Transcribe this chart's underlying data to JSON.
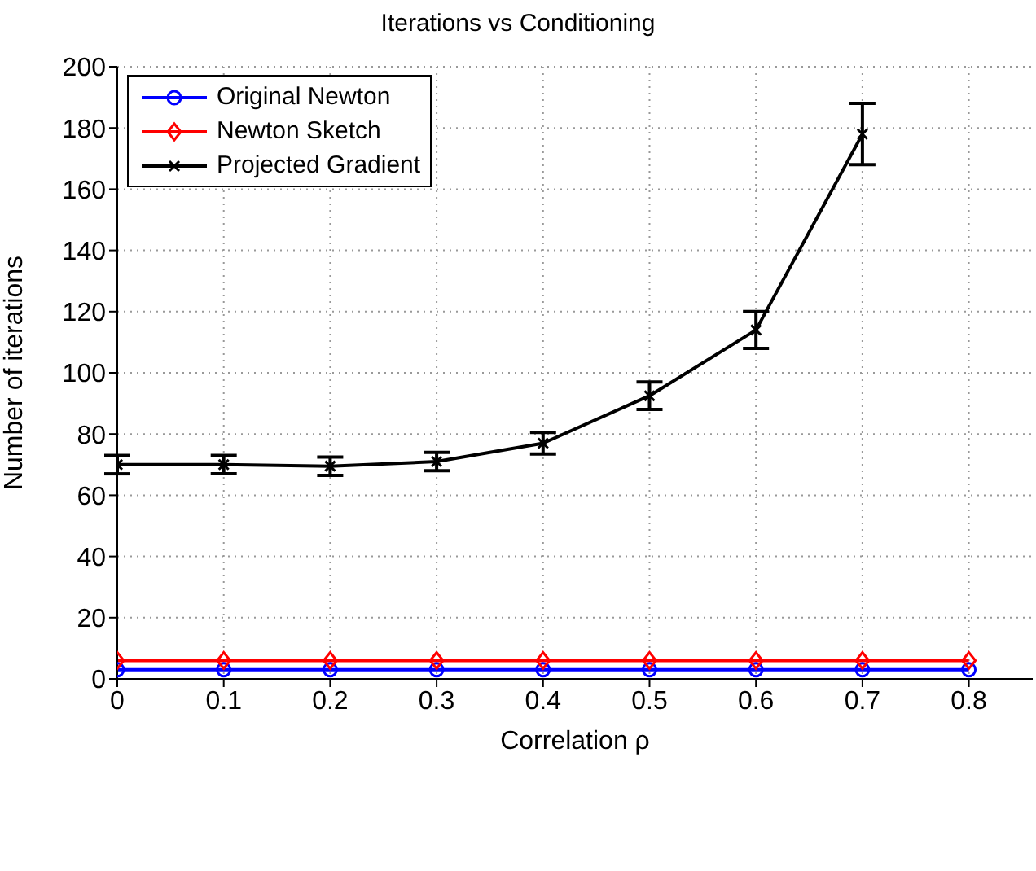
{
  "chart_data": {
    "type": "line",
    "title": "Iterations vs Conditioning",
    "xlabel": "Correlation ρ",
    "ylabel": "Number of iterations",
    "x": [
      0,
      0.1,
      0.2,
      0.3,
      0.4,
      0.5,
      0.6,
      0.7,
      0.8
    ],
    "series": [
      {
        "name": "Original Newton",
        "color": "#0000ff",
        "marker": "circle",
        "values": [
          3,
          3,
          3,
          3,
          3,
          3,
          3,
          3,
          3
        ]
      },
      {
        "name": "Newton Sketch",
        "color": "#ff0000",
        "marker": "diamond",
        "values": [
          6,
          6,
          6,
          6,
          6,
          6,
          6,
          6,
          6
        ]
      },
      {
        "name": "Projected Gradient",
        "color": "#000000",
        "marker": "cross",
        "values": [
          70,
          70,
          69.5,
          71,
          77,
          92.5,
          114,
          178,
          null
        ],
        "errors": [
          3,
          3,
          3,
          3,
          3.5,
          4.5,
          6,
          10,
          null
        ]
      }
    ],
    "xlim": [
      0,
      0.86
    ],
    "xticks": [
      0,
      0.1,
      0.2,
      0.3,
      0.4,
      0.5,
      0.6,
      0.7,
      0.8
    ],
    "ylim": [
      0,
      200
    ],
    "yticks": [
      0,
      20,
      40,
      60,
      80,
      100,
      120,
      140,
      160,
      180,
      200
    ],
    "grid": true,
    "legend": "top left",
    "line_style": "solid"
  }
}
